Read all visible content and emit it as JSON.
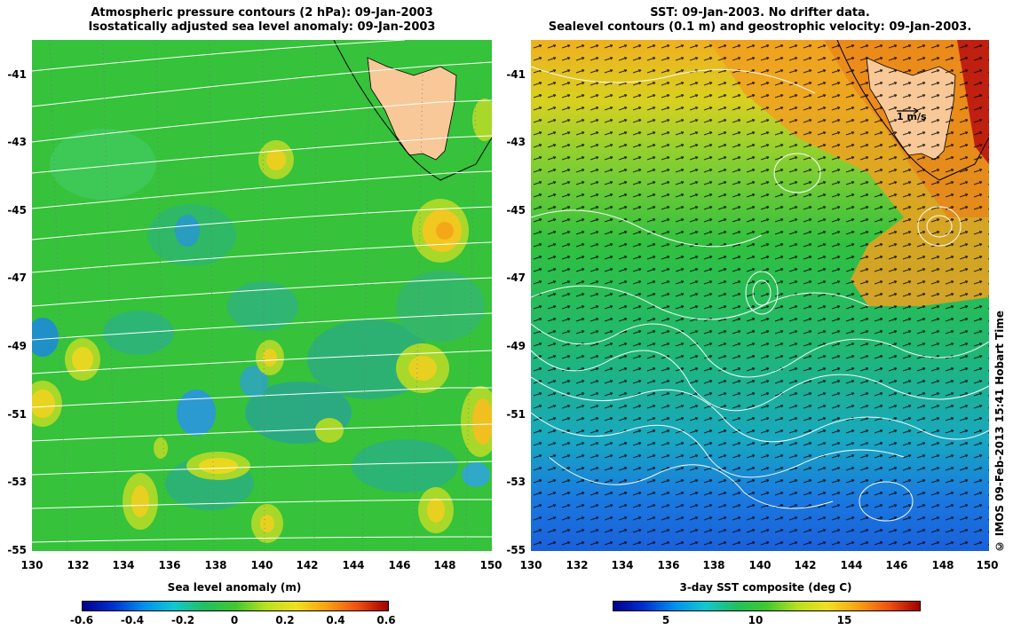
{
  "left_panel": {
    "title_line1": "Atmospheric pressure contours (2 hPa): 09-Jan-2003",
    "title_line2": "Isostatically adjusted sea level anomaly: 09-Jan-2003",
    "x_ticks": [
      "130",
      "132",
      "134",
      "136",
      "138",
      "140",
      "142",
      "144",
      "146",
      "148",
      "150"
    ],
    "y_ticks": [
      "-41",
      "-43",
      "-45",
      "-47",
      "-49",
      "-51",
      "-53",
      "-55"
    ],
    "colorbar_label": "Sea level anomaly (m)",
    "colorbar_ticks": [
      "-0.6",
      "-0.4",
      "-0.2",
      "0",
      "0.2",
      "0.4",
      "0.6"
    ]
  },
  "right_panel": {
    "title_line1": "SST: 09-Jan-2003. No drifter data.",
    "title_line2": "Sealevel contours (0.1 m) and geostrophic velocity: 09-Jan-2003.",
    "x_ticks": [
      "130",
      "132",
      "134",
      "136",
      "138",
      "140",
      "142",
      "144",
      "146",
      "148",
      "150"
    ],
    "y_ticks": [
      "-41",
      "-43",
      "-45",
      "-47",
      "-49",
      "-51",
      "-53",
      "-55"
    ],
    "scale_label": "1 m/s",
    "colorbar_label": "3-day SST composite (deg C)",
    "colorbar_ticks": [
      "5",
      "10",
      "15"
    ]
  },
  "credit": "© IMOS 09-Feb-2013 15:41 Hobart Time",
  "colors": {
    "land": "#f8c898",
    "sla_base": "#33c43a",
    "sst_cold": "#1a6fe0",
    "sst_warm": "#f0a020"
  }
}
